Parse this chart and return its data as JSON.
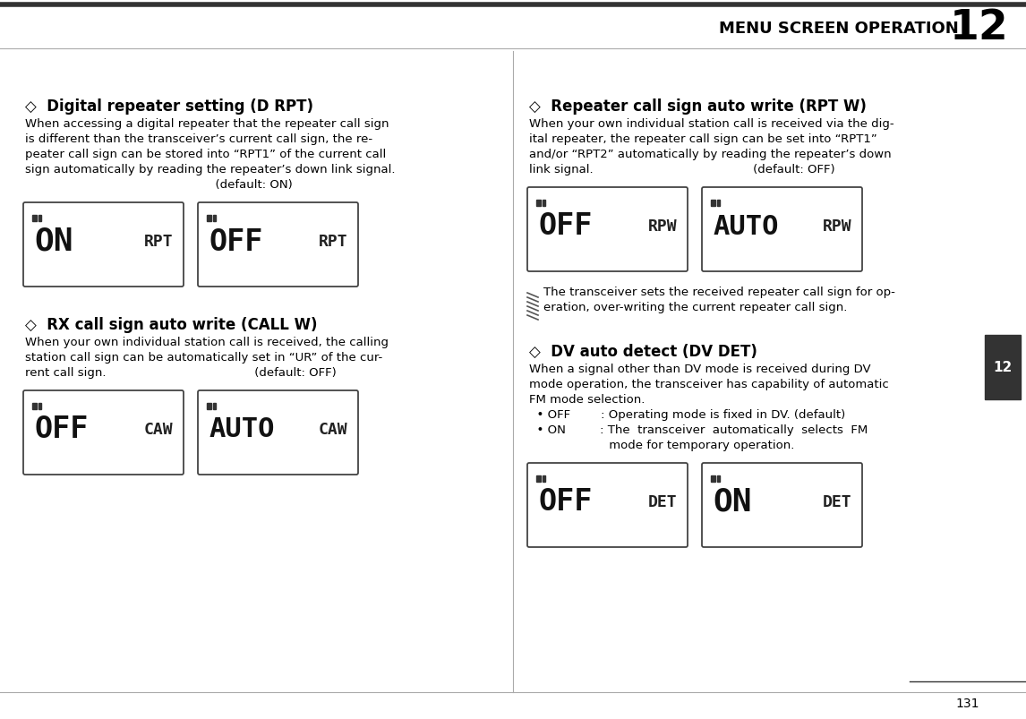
{
  "bg_color": "#ffffff",
  "page_number": "131",
  "chapter_number": "12",
  "header_text": "MENU SCREEN OPERATION",
  "top_line_color": "#333333",
  "chapter_tab_color": "#333333",
  "chapter_tab_text_color": "#ffffff",
  "sections": [
    {
      "col": "left",
      "title": "◇  Digital repeater setting (D RPT)",
      "body_lines": [
        "When accessing a digital repeater that the repeater call sign",
        "is different than the transceiver’s current call sign, the re-",
        "peater call sign can be stored into “RPT1” of the current call",
        "sign automatically by reading the repeater’s down link signal.",
        "                                                  (default: ON)"
      ],
      "screens": [
        {
          "main": "ON",
          "sub": "RPT"
        },
        {
          "main": "OFF",
          "sub": "RPT"
        }
      ]
    },
    {
      "col": "left",
      "title": "◇  RX call sign auto write (CALL W)",
      "body_lines": [
        "When your own individual station call is received, the calling",
        "station call sign can be automatically set in “UR” of the cur-",
        "rent call sign.                                       (default: OFF)"
      ],
      "screens": [
        {
          "main": "OFF",
          "sub": "CAW"
        },
        {
          "main": "AUTO",
          "sub": "CAW"
        }
      ]
    },
    {
      "col": "right",
      "title": "◇  Repeater call sign auto write (RPT W)",
      "body_lines": [
        "When your own individual station call is received via the dig-",
        "ital repeater, the repeater call sign can be set into “RPT1”",
        "and/or “RPT2” automatically by reading the repeater’s down",
        "link signal.                                          (default: OFF)"
      ],
      "screens": [
        {
          "main": "OFF",
          "sub": "RPW"
        },
        {
          "main": "AUTO",
          "sub": "RPW"
        }
      ]
    },
    {
      "col": "right",
      "title": "◇  DV auto detect (DV DET)",
      "body_lines": [
        "When a signal other than DV mode is received during DV",
        "mode operation, the transceiver has capability of automatic",
        "FM mode selection.",
        "  • OFF        : Operating mode is fixed in DV. (default)",
        "  • ON         : The  transceiver  automatically  selects  FM",
        "                     mode for temporary operation."
      ],
      "screens": [
        {
          "main": "OFF",
          "sub": "DET"
        },
        {
          "main": "ON",
          "sub": "DET"
        }
      ]
    }
  ],
  "note_text": [
    "The transceiver sets the received repeater call sign for op-",
    "eration, over-writing the current repeater call sign."
  ]
}
